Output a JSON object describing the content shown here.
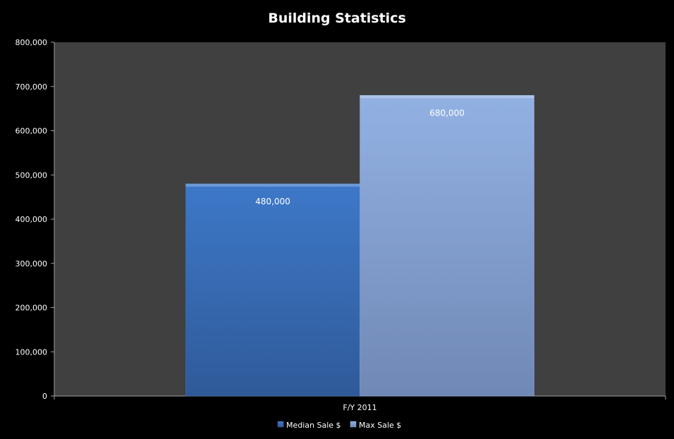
{
  "chart_data": {
    "type": "bar",
    "title": "Building Statistics",
    "categories": [
      "F/Y 2011"
    ],
    "series": [
      {
        "name": "Median Sale $",
        "values": [
          480000
        ],
        "color": "#3b6fb8",
        "label": "480,000"
      },
      {
        "name": "Max Sale $",
        "values": [
          680000
        ],
        "color": "#8ba8d8",
        "label": "680,000"
      }
    ],
    "ylim": [
      0,
      800000
    ],
    "yticks": [
      0,
      100000,
      200000,
      300000,
      400000,
      500000,
      600000,
      700000,
      800000
    ],
    "ytick_labels": [
      "0",
      "100,000",
      "200,000",
      "300,000",
      "400,000",
      "500,000",
      "600,000",
      "700,000",
      "800,000"
    ],
    "xlabel": "",
    "ylabel": "",
    "grid": false,
    "legend_position": "bottom",
    "colors": {
      "background": "#000000",
      "plot_area": "#404040",
      "text": "#ffffff",
      "axis": "#a0a0a0"
    }
  }
}
